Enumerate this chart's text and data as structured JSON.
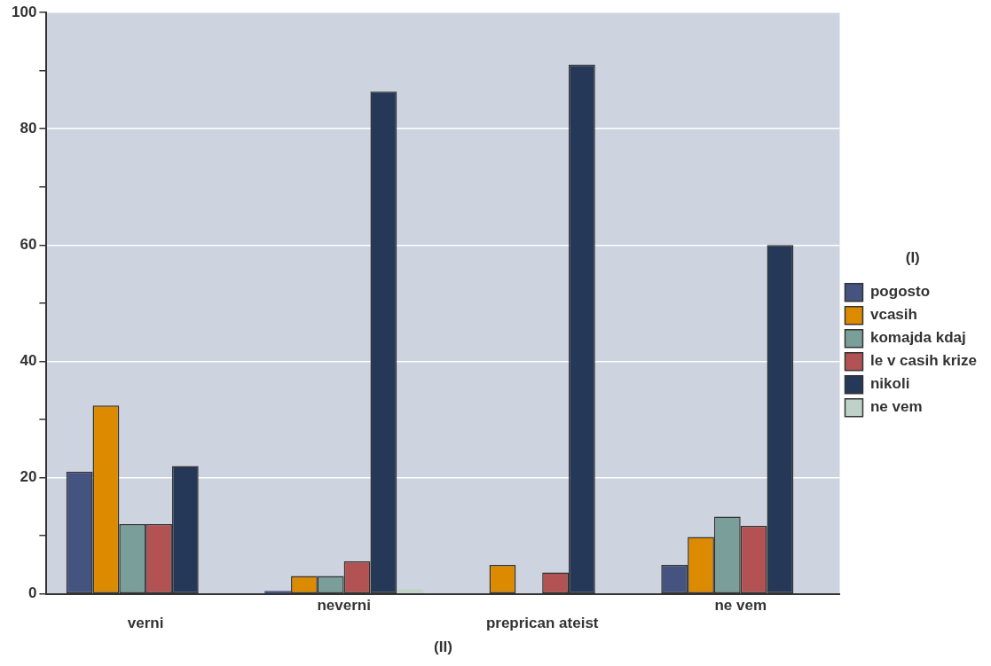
{
  "chart_data": {
    "type": "bar",
    "xlabel": "(II)",
    "legend_title": "(I)",
    "legend": "right",
    "grid": "y",
    "categories": [
      "verni",
      "neverni",
      "preprican ateist",
      "ne vem"
    ],
    "ylim": [
      0,
      100
    ],
    "yticks": [
      0,
      {
        "value": 10,
        "label": null
      },
      20,
      {
        "value": 30,
        "label": null
      },
      40,
      {
        "value": 50,
        "label": null
      },
      60,
      {
        "value": 70,
        "label": null
      },
      80,
      {
        "value": 90,
        "label": null
      },
      100
    ],
    "series": [
      {
        "name": "pogosto",
        "color": "#44537f",
        "values": [
          21,
          0.5,
          0,
          5
        ]
      },
      {
        "name": "vcasih",
        "color": "#dc8a00",
        "values": [
          32.4,
          3.1,
          5,
          9.8
        ]
      },
      {
        "name": "komajda kdaj",
        "color": "#7a9e99",
        "values": [
          12,
          3.1,
          0,
          13.3
        ]
      },
      {
        "name": "le v casih krize",
        "color": "#b35252",
        "values": [
          12,
          5.6,
          3.7,
          11.7
        ]
      },
      {
        "name": "nikoli",
        "color": "#263858",
        "values": [
          22,
          86.4,
          91,
          60
        ]
      },
      {
        "name": "ne vem",
        "color": "#bfd2c8",
        "values": [
          0,
          0.8,
          0,
          0
        ]
      }
    ]
  }
}
